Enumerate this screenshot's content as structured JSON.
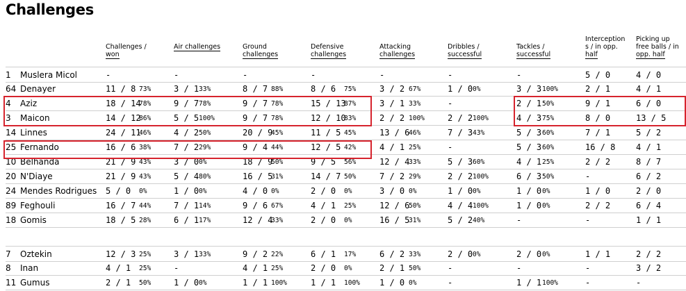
{
  "title": "Challenges",
  "headers": [
    {
      "lines": [
        "Challenges /",
        "won"
      ]
    },
    {
      "lines": [
        "Air challenges"
      ]
    },
    {
      "lines": [
        "Ground",
        "challenges"
      ]
    },
    {
      "lines": [
        "Defensive",
        "challenges"
      ]
    },
    {
      "lines": [
        "Attacking",
        "challenges"
      ]
    },
    {
      "lines": [
        "Dribbles /",
        "successful"
      ]
    },
    {
      "lines": [
        "Tackles /",
        "successful"
      ]
    },
    {
      "lines": [
        "Interception",
        "s / in opp.",
        "half"
      ]
    },
    {
      "lines": [
        "Picking up",
        "free balls / in",
        "opp. half"
      ]
    }
  ],
  "players": [
    {
      "num": "1",
      "name": "Muslera Micol",
      "cells": [
        [
          "-",
          ""
        ],
        [
          "-",
          ""
        ],
        [
          "-",
          ""
        ],
        [
          "-",
          ""
        ],
        [
          "-",
          ""
        ],
        [
          "-",
          ""
        ],
        [
          "-",
          ""
        ],
        [
          "5 / 0",
          ""
        ],
        [
          "4 / 0",
          ""
        ]
      ]
    },
    {
      "num": "64",
      "name": "Denayer",
      "cells": [
        [
          "11 / 8",
          "73%"
        ],
        [
          "3 / 1",
          "33%"
        ],
        [
          "8 / 7",
          "88%"
        ],
        [
          "8 / 6",
          "75%"
        ],
        [
          "3 / 2",
          "67%"
        ],
        [
          "1 / 0",
          "0%"
        ],
        [
          "3 / 3",
          "100%"
        ],
        [
          "2 / 1",
          ""
        ],
        [
          "4 / 1",
          ""
        ]
      ]
    },
    {
      "num": "4",
      "name": "Aziz",
      "cells": [
        [
          "18 / 14",
          "78%"
        ],
        [
          "9 / 7",
          "78%"
        ],
        [
          "9 / 7",
          "78%"
        ],
        [
          "15 / 13",
          "87%"
        ],
        [
          "3 / 1",
          "33%"
        ],
        [
          "-",
          ""
        ],
        [
          "2 / 1",
          "50%"
        ],
        [
          "9 / 1",
          ""
        ],
        [
          "6 / 0",
          ""
        ]
      ]
    },
    {
      "num": "3",
      "name": "Maicon",
      "cells": [
        [
          "14 / 12",
          "86%"
        ],
        [
          "5 / 5",
          "100%"
        ],
        [
          "9 / 7",
          "78%"
        ],
        [
          "12 / 10",
          "83%"
        ],
        [
          "2 / 2",
          "100%"
        ],
        [
          "2 / 2",
          "100%"
        ],
        [
          "4 / 3",
          "75%"
        ],
        [
          "8 / 0",
          ""
        ],
        [
          "13 / 5",
          ""
        ]
      ]
    },
    {
      "num": "14",
      "name": "Linnes",
      "cells": [
        [
          "24 / 11",
          "46%"
        ],
        [
          "4 / 2",
          "50%"
        ],
        [
          "20 / 9",
          "45%"
        ],
        [
          "11 / 5",
          "45%"
        ],
        [
          "13 / 6",
          "46%"
        ],
        [
          "7 / 3",
          "43%"
        ],
        [
          "5 / 3",
          "60%"
        ],
        [
          "7 / 1",
          ""
        ],
        [
          "5 / 2",
          ""
        ]
      ]
    },
    {
      "num": "25",
      "name": "Fernando",
      "cells": [
        [
          "16 / 6",
          "38%"
        ],
        [
          "7 / 2",
          "29%"
        ],
        [
          "9 / 4",
          "44%"
        ],
        [
          "12 / 5",
          "42%"
        ],
        [
          "4 / 1",
          "25%"
        ],
        [
          "-",
          ""
        ],
        [
          "5 / 3",
          "60%"
        ],
        [
          "16 / 8",
          ""
        ],
        [
          "4 / 1",
          ""
        ]
      ]
    },
    {
      "num": "10",
      "name": "Belhanda",
      "cells": [
        [
          "21 / 9",
          "43%"
        ],
        [
          "3 / 0",
          "0%"
        ],
        [
          "18 / 9",
          "50%"
        ],
        [
          "9 / 5",
          "56%"
        ],
        [
          "12 / 4",
          "33%"
        ],
        [
          "5 / 3",
          "60%"
        ],
        [
          "4 / 1",
          "25%"
        ],
        [
          "2 / 2",
          ""
        ],
        [
          "8 / 7",
          ""
        ]
      ]
    },
    {
      "num": "20",
      "name": "N'Diaye",
      "cells": [
        [
          "21 / 9",
          "43%"
        ],
        [
          "5 / 4",
          "80%"
        ],
        [
          "16 / 5",
          "31%"
        ],
        [
          "14 / 7",
          "50%"
        ],
        [
          "7 / 2",
          "29%"
        ],
        [
          "2 / 2",
          "100%"
        ],
        [
          "6 / 3",
          "50%"
        ],
        [
          "-",
          ""
        ],
        [
          "6 / 2",
          ""
        ]
      ]
    },
    {
      "num": "24",
      "name": "Mendes Rodrigues",
      "cells": [
        [
          "5 / 0",
          "0%"
        ],
        [
          "1 / 0",
          "0%"
        ],
        [
          "4 / 0",
          "0%"
        ],
        [
          "2 / 0",
          "0%"
        ],
        [
          "3 / 0",
          "0%"
        ],
        [
          "1 / 0",
          "0%"
        ],
        [
          "1 / 0",
          "0%"
        ],
        [
          "1 / 0",
          ""
        ],
        [
          "2 / 0",
          ""
        ]
      ]
    },
    {
      "num": "89",
      "name": "Feghouli",
      "cells": [
        [
          "16 / 7",
          "44%"
        ],
        [
          "7 / 1",
          "14%"
        ],
        [
          "9 / 6",
          "67%"
        ],
        [
          "4 / 1",
          "25%"
        ],
        [
          "12 / 6",
          "50%"
        ],
        [
          "4 / 4",
          "100%"
        ],
        [
          "1 / 0",
          "0%"
        ],
        [
          "2 / 2",
          ""
        ],
        [
          "6 / 4",
          ""
        ]
      ]
    },
    {
      "num": "18",
      "name": "Gomis",
      "cells": [
        [
          "18 / 5",
          "28%"
        ],
        [
          "6 / 1",
          "17%"
        ],
        [
          "12 / 4",
          "33%"
        ],
        [
          "2 / 0",
          "0%"
        ],
        [
          "16 / 5",
          "31%"
        ],
        [
          "5 / 2",
          "40%"
        ],
        [
          "-",
          ""
        ],
        [
          "-",
          ""
        ],
        [
          "1 / 1",
          ""
        ]
      ]
    },
    {
      "num": "7",
      "name": "Oztekin",
      "cells": [
        [
          "12 / 3",
          "25%"
        ],
        [
          "3 / 1",
          "33%"
        ],
        [
          "9 / 2",
          "22%"
        ],
        [
          "6 / 1",
          "17%"
        ],
        [
          "6 / 2",
          "33%"
        ],
        [
          "2 / 0",
          "0%"
        ],
        [
          "2 / 0",
          "0%"
        ],
        [
          "1 / 1",
          ""
        ],
        [
          "2 / 2",
          ""
        ]
      ]
    },
    {
      "num": "8",
      "name": "Inan",
      "cells": [
        [
          "4 / 1",
          "25%"
        ],
        [
          "-",
          ""
        ],
        [
          "4 / 1",
          "25%"
        ],
        [
          "2 / 0",
          "0%"
        ],
        [
          "2 / 1",
          "50%"
        ],
        [
          "-",
          ""
        ],
        [
          "-",
          ""
        ],
        [
          "-",
          ""
        ],
        [
          "3 / 2",
          ""
        ]
      ]
    },
    {
      "num": "11",
      "name": "Gumus",
      "cells": [
        [
          "2 / 1",
          "50%"
        ],
        [
          "1 / 0",
          "0%"
        ],
        [
          "1 / 1",
          "100%"
        ],
        [
          "1 / 1",
          "100%"
        ],
        [
          "1 / 0",
          "0%"
        ],
        [
          "-",
          ""
        ],
        [
          "1 / 1",
          "100%"
        ],
        [
          "-",
          ""
        ],
        [
          "-",
          ""
        ]
      ]
    }
  ],
  "highlight_color": "#d6232d"
}
